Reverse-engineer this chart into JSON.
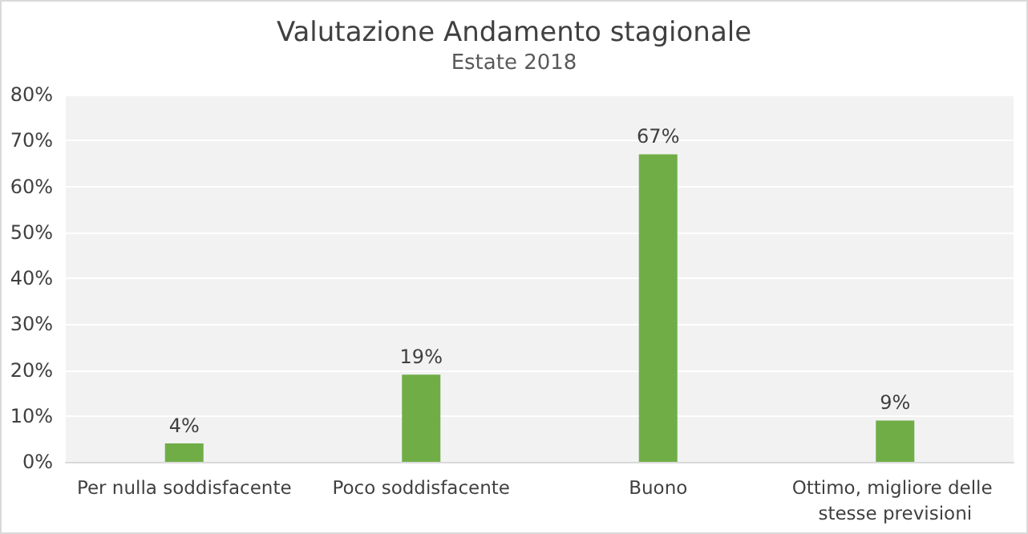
{
  "chart_data": {
    "type": "bar",
    "title": "Valutazione Andamento stagionale",
    "subtitle": "Estate 2018",
    "categories": [
      "Per nulla soddisfacente",
      "Poco soddisfacente",
      "Buono",
      "Ottimo, migliore delle stesse previsioni"
    ],
    "values": [
      4,
      19,
      67,
      9
    ],
    "value_labels": [
      "4%",
      "19%",
      "67%",
      "9%"
    ],
    "color": "#70ad47",
    "ylim": [
      0,
      80
    ],
    "yticks": [
      {
        "value": 0,
        "label": "0%"
      },
      {
        "value": 10,
        "label": "10%"
      },
      {
        "value": 20,
        "label": "20%"
      },
      {
        "value": 30,
        "label": "30%"
      },
      {
        "value": 40,
        "label": "40%"
      },
      {
        "value": 50,
        "label": "50%"
      },
      {
        "value": 60,
        "label": "60%"
      },
      {
        "value": 70,
        "label": "70%"
      },
      {
        "value": 80,
        "label": "80%"
      }
    ],
    "grid": "y"
  }
}
